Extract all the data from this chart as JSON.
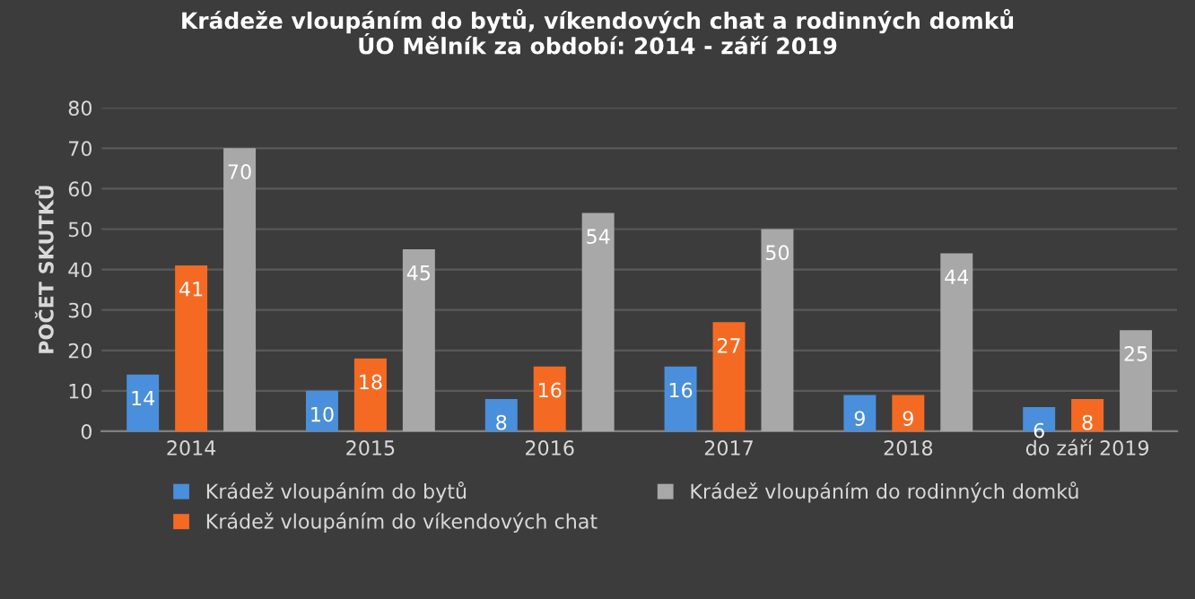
{
  "chart_data": {
    "type": "bar",
    "title": "Krádeže vloupáním do bytů, víkendových chat a rodinných domků\nÚO Mělník za období: 2014 - září 2019",
    "ylabel": "POČET SKUTKŮ",
    "categories": [
      "2014",
      "2015",
      "2016",
      "2017",
      "2018",
      "do září 2019"
    ],
    "series": [
      {
        "name": "Krádež vloupáním do bytů",
        "color": "#4a8fdb",
        "values": [
          14,
          10,
          8,
          16,
          9,
          6
        ]
      },
      {
        "name": "Krádež vloupáním do víkendových chat",
        "color": "#f56a22",
        "values": [
          41,
          18,
          16,
          27,
          9,
          8
        ]
      },
      {
        "name": "Krádež vloupáním do rodinných domků",
        "color": "#a8a8a8",
        "values": [
          70,
          45,
          54,
          50,
          44,
          25
        ]
      }
    ],
    "ylim": [
      0,
      80
    ],
    "yticks": [
      0,
      10,
      20,
      30,
      40,
      50,
      60,
      70,
      80
    ],
    "grid": "y",
    "legend": "bottom",
    "data_labels": true
  }
}
